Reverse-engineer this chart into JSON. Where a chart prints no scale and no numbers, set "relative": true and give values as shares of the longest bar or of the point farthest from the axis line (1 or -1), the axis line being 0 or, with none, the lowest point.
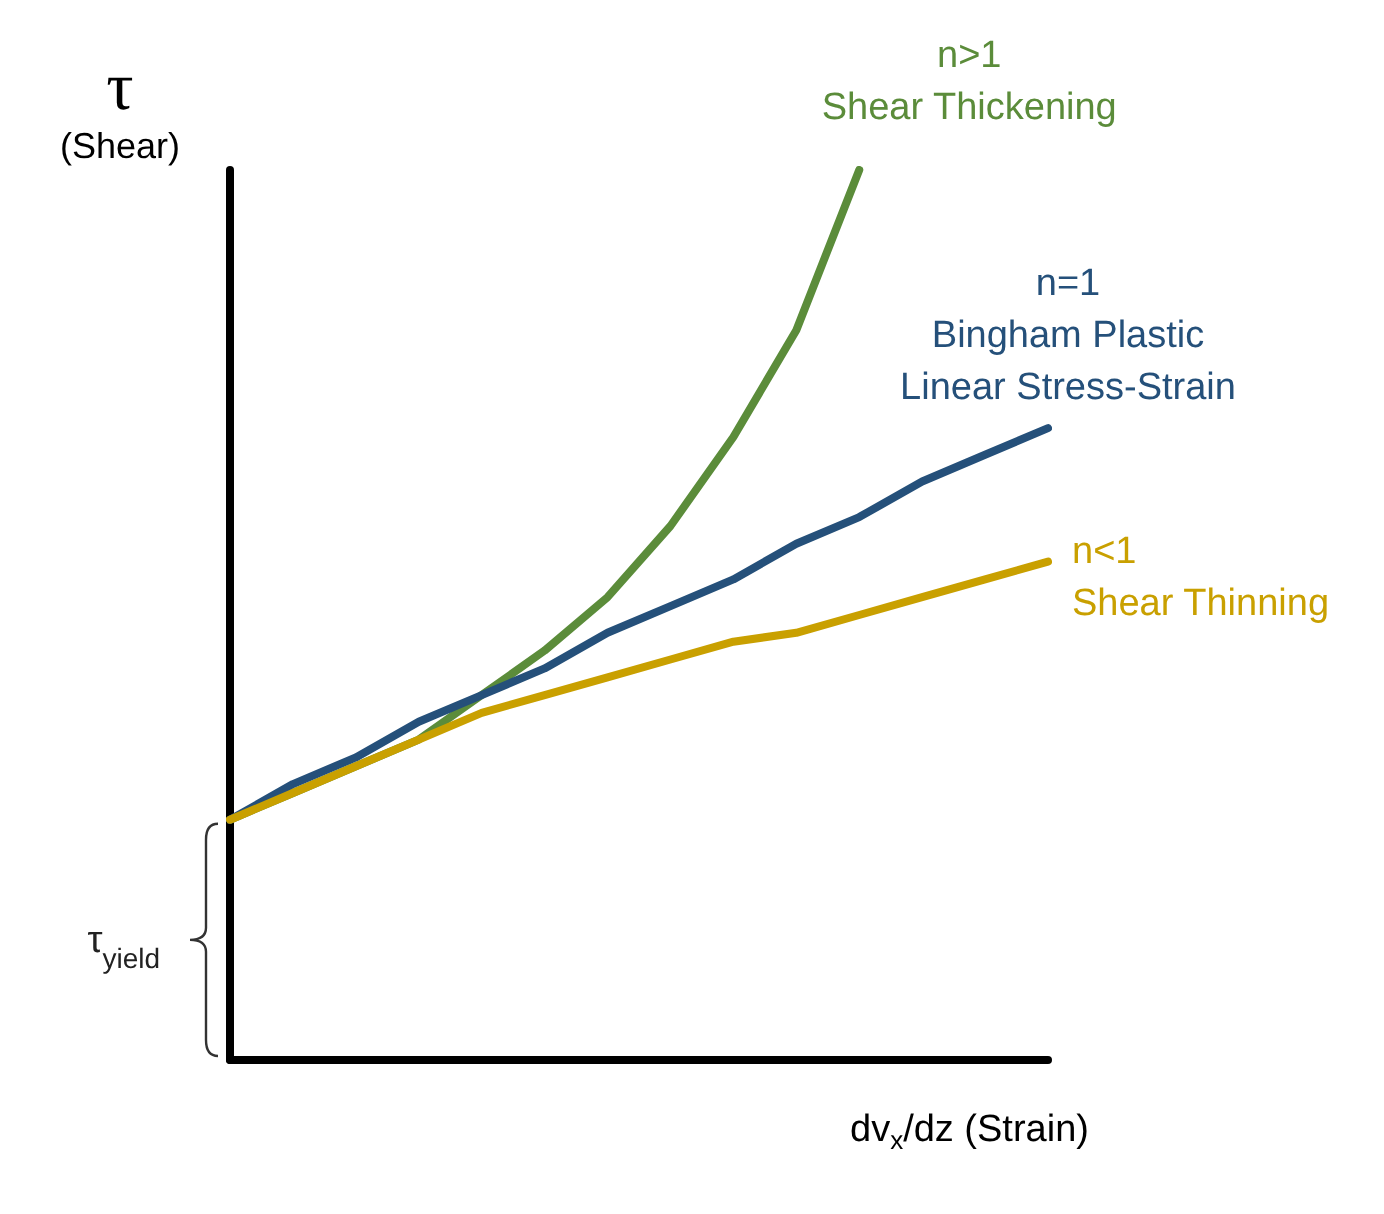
{
  "chart_data": {
    "type": "line",
    "relative": true,
    "xlabel": "dv$_{x}$/dz (Strain)",
    "ylabel": "τ\n(Shear)",
    "annotations": [
      "τ$_{yield}$"
    ],
    "marker": "none",
    "line_style": "solid",
    "categories": [
      null,
      null,
      null,
      null,
      null,
      null,
      null,
      null,
      null,
      null,
      null,
      null,
      null,
      null
    ],
    "series": [
      {
        "name": "n>1\nShear Thickening",
        "color": "#5b8c3a",
        "values": [
          0.27,
          0.3,
          0.33,
          0.36,
          0.41,
          0.46,
          0.52,
          0.6,
          0.7,
          0.82,
          1,
          null,
          null,
          null
        ]
      },
      {
        "name": "n=1\nBingham Plastic\nLinear Stress-Strain",
        "color": "#25507a",
        "values": [
          0.27,
          0.31,
          0.34,
          0.38,
          0.41,
          0.44,
          0.48,
          0.51,
          0.54,
          0.58,
          0.61,
          0.65,
          0.68,
          0.71
        ]
      },
      {
        "name": "n<1\nShear Thinning",
        "color": "#c9a000",
        "values": [
          0.27,
          0.3,
          0.33,
          0.36,
          0.39,
          0.41,
          0.43,
          0.45,
          0.47,
          0.48,
          0.5,
          0.52,
          0.54,
          0.56
        ]
      }
    ]
  }
}
